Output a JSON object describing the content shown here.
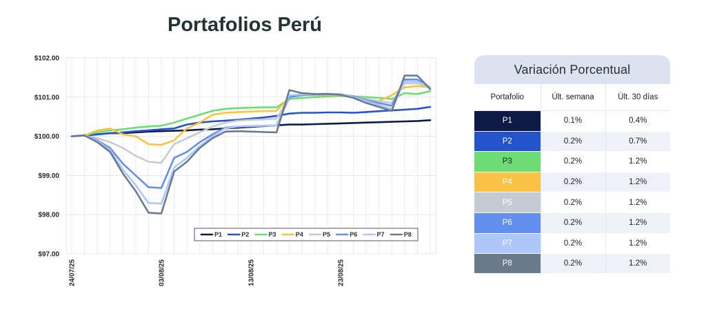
{
  "title": "Portafolios Perú",
  "chart_data": {
    "type": "line",
    "title": "Portafolios Perú",
    "xlabel": "",
    "ylabel": "",
    "ylim": [
      97.0,
      102.0
    ],
    "ytick_values": [
      97,
      98,
      99,
      100,
      101,
      102
    ],
    "yticks": [
      "$97.00",
      "$98.00",
      "$99.00",
      "$100.00",
      "$101.00",
      "$102.00"
    ],
    "x": [
      "24/07/25",
      "25/07/25",
      "28/07/25",
      "29/07/25",
      "30/07/25",
      "31/07/25",
      "01/08/25",
      "04/08/25",
      "05/08/25",
      "06/08/25",
      "07/08/25",
      "08/08/25",
      "11/08/25",
      "12/08/25",
      "13/08/25",
      "14/08/25",
      "15/08/25",
      "18/08/25",
      "19/08/25",
      "20/08/25",
      "21/08/25",
      "22/08/25",
      "25/08/25",
      "26/08/25",
      "27/08/25",
      "28/08/25",
      "29/08/25",
      "01/09/25",
      "02/09/25"
    ],
    "xtick_labels": [
      "24/07/25",
      "03/08/25",
      "13/08/25",
      "23/08/25"
    ],
    "grid": true,
    "legend_position": "bottom-right",
    "series": [
      {
        "name": "P1",
        "color": "#0d1a45",
        "values": [
          100.0,
          100.02,
          100.05,
          100.08,
          100.08,
          100.1,
          100.12,
          100.13,
          100.14,
          100.15,
          100.17,
          100.18,
          100.2,
          100.22,
          100.24,
          100.26,
          100.28,
          100.3,
          100.3,
          100.31,
          100.32,
          100.33,
          100.34,
          100.35,
          100.36,
          100.37,
          100.38,
          100.39,
          100.41
        ]
      },
      {
        "name": "P2",
        "color": "#2452c8",
        "values": [
          100.0,
          100.03,
          100.05,
          100.08,
          100.1,
          100.13,
          100.15,
          100.18,
          100.2,
          100.3,
          100.35,
          100.38,
          100.4,
          100.42,
          100.45,
          100.48,
          100.52,
          100.58,
          100.6,
          100.6,
          100.61,
          100.61,
          100.6,
          100.62,
          100.64,
          100.66,
          100.68,
          100.7,
          100.75
        ]
      },
      {
        "name": "P3",
        "color": "#6ddc74",
        "values": [
          100.0,
          100.03,
          100.1,
          100.15,
          100.18,
          100.22,
          100.25,
          100.27,
          100.35,
          100.45,
          100.55,
          100.65,
          100.7,
          100.72,
          100.73,
          100.74,
          100.74,
          100.95,
          100.98,
          101.0,
          101.02,
          101.03,
          101.02,
          101.0,
          100.98,
          100.95,
          101.1,
          101.08,
          101.15
        ]
      },
      {
        "name": "P4",
        "color": "#f8c244",
        "values": [
          100.0,
          100.02,
          100.15,
          100.2,
          100.05,
          100.0,
          99.8,
          99.78,
          99.9,
          100.2,
          100.35,
          100.55,
          100.6,
          100.62,
          100.63,
          100.64,
          100.65,
          101.0,
          101.05,
          101.05,
          101.06,
          101.05,
          101.0,
          100.95,
          100.9,
          101.05,
          101.25,
          101.28,
          101.25
        ]
      },
      {
        "name": "P5",
        "color": "#c6cad2",
        "values": [
          100.0,
          100.02,
          99.95,
          99.85,
          99.7,
          99.5,
          99.35,
          99.32,
          99.8,
          99.95,
          100.1,
          100.25,
          100.35,
          100.4,
          100.42,
          100.43,
          100.45,
          101.0,
          101.05,
          101.06,
          101.07,
          101.06,
          101.02,
          100.95,
          100.9,
          100.85,
          101.35,
          101.35,
          101.25
        ]
      },
      {
        "name": "P6",
        "color": "#6390ec",
        "values": [
          100.0,
          100.02,
          99.9,
          99.7,
          99.3,
          99.0,
          98.7,
          98.68,
          99.45,
          99.6,
          99.85,
          100.05,
          100.22,
          100.25,
          100.26,
          100.27,
          100.28,
          101.0,
          101.05,
          101.07,
          101.08,
          101.07,
          101.02,
          100.92,
          100.85,
          100.78,
          101.45,
          101.45,
          101.25
        ]
      },
      {
        "name": "P7",
        "color": "#aec7fa",
        "values": [
          100.0,
          100.02,
          99.88,
          99.65,
          99.15,
          98.75,
          98.3,
          98.28,
          99.2,
          99.45,
          99.75,
          100.0,
          100.2,
          100.25,
          100.26,
          100.27,
          100.28,
          101.05,
          101.07,
          101.08,
          101.09,
          101.08,
          101.0,
          100.9,
          100.8,
          100.7,
          101.4,
          101.4,
          101.25
        ]
      },
      {
        "name": "P8",
        "color": "#6a7b8d",
        "values": [
          100.0,
          100.02,
          99.85,
          99.6,
          99.05,
          98.6,
          98.05,
          98.03,
          99.1,
          99.35,
          99.7,
          99.95,
          100.12,
          100.13,
          100.12,
          100.11,
          100.1,
          101.18,
          101.1,
          101.08,
          101.08,
          101.06,
          100.98,
          100.85,
          100.75,
          100.65,
          101.55,
          101.55,
          101.2
        ]
      }
    ]
  },
  "table": {
    "title": "Variación Porcentual",
    "headers": [
      "Portafolio",
      "Últ. semana",
      "Últ. 30 días"
    ],
    "rows": [
      {
        "name": "P1",
        "color": "#0d1a45",
        "text_color": "#ffffff",
        "week": "0.1%",
        "month": "0.4%"
      },
      {
        "name": "P2",
        "color": "#2452c8",
        "text_color": "#ffffff",
        "week": "0.2%",
        "month": "0.7%"
      },
      {
        "name": "P3",
        "color": "#6ddc74",
        "text_color": "#1a2a1a",
        "week": "0.2%",
        "month": "1.2%"
      },
      {
        "name": "P4",
        "color": "#f8c244",
        "text_color": "#ffffff",
        "week": "0.2%",
        "month": "1.2%"
      },
      {
        "name": "P5",
        "color": "#c6cad2",
        "text_color": "#ffffff",
        "week": "0.2%",
        "month": "1.2%"
      },
      {
        "name": "P6",
        "color": "#6390ec",
        "text_color": "#ffffff",
        "week": "0.2%",
        "month": "1.2%"
      },
      {
        "name": "P7",
        "color": "#aec7fa",
        "text_color": "#ffffff",
        "week": "0.2%",
        "month": "1.2%"
      },
      {
        "name": "P8",
        "color": "#6a7b8d",
        "text_color": "#ffffff",
        "week": "0.2%",
        "month": "1.2%"
      }
    ]
  }
}
